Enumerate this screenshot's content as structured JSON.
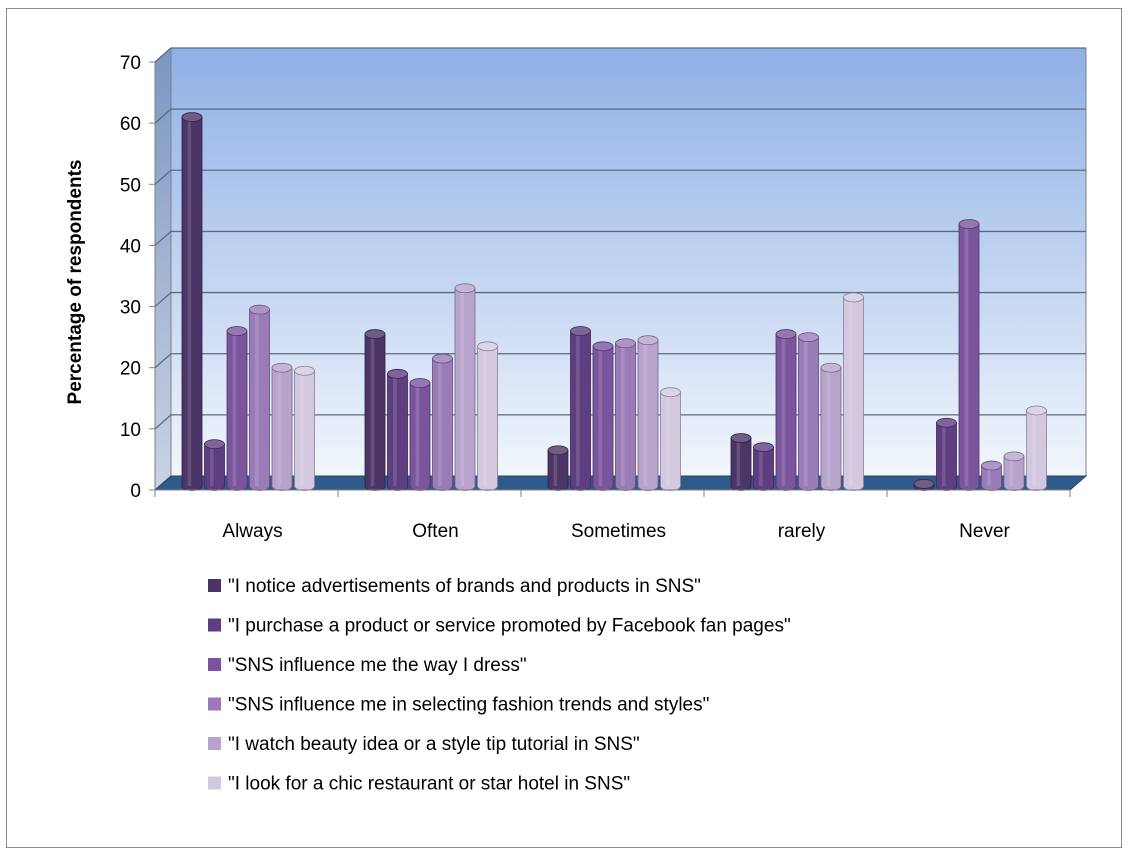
{
  "chart_data": {
    "type": "bar",
    "ylabel": "Percentage of respondents",
    "ylim": [
      0,
      70
    ],
    "yticks": [
      0,
      10,
      20,
      30,
      40,
      50,
      60,
      70
    ],
    "grid": true,
    "legend_position": "bottom",
    "categories": [
      "Always",
      "Often",
      "Sometimes",
      "rarely",
      "Never"
    ],
    "series": [
      {
        "name": "\"I notice advertisements of brands and products in SNS\"",
        "color": "#4b3466",
        "values": [
          61,
          25.5,
          6.5,
          8.5,
          1
        ]
      },
      {
        "name": "\"I purchase a product or service promoted by Facebook fan pages\"",
        "color": "#5e3d80",
        "values": [
          7.5,
          19,
          26,
          7,
          11
        ]
      },
      {
        "name": "\"SNS influence me the way I dress\"",
        "color": "#7a559e",
        "values": [
          26,
          17.5,
          23.5,
          25.5,
          43.5
        ]
      },
      {
        "name": "\"SNS influence me in selecting fashion trends and styles\"",
        "color": "#9a7bb8",
        "values": [
          29.5,
          21.5,
          24,
          25,
          4
        ]
      },
      {
        "name": "\"I watch beauty idea or a style tip tutorial in SNS\"",
        "color": "#b7a3cc",
        "values": [
          20,
          33,
          24.5,
          20,
          5.5
        ]
      },
      {
        "name": "\"I look for a chic restaurant or star hotel in SNS\"",
        "color": "#d3c8df",
        "values": [
          19.5,
          23.5,
          16,
          31.5,
          13
        ]
      }
    ]
  }
}
